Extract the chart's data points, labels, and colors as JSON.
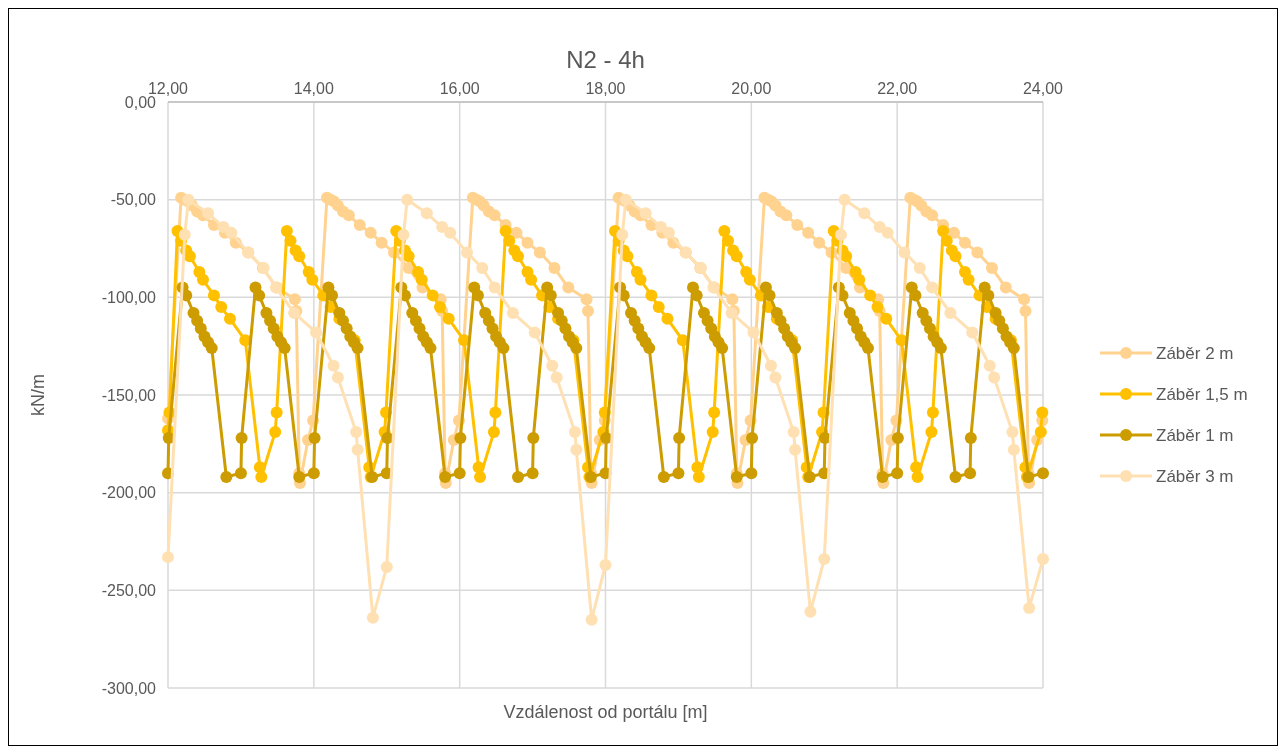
{
  "chart_data": {
    "type": "line",
    "title": "N2 - 4h",
    "xlabel": "Vzdálenost od portálu [m]",
    "ylabel": "kN/m",
    "xlim": [
      12,
      24
    ],
    "ylim": [
      -300,
      0
    ],
    "xticks": [
      {
        "value": 12,
        "label": "12,00"
      },
      {
        "value": 14,
        "label": "14,00"
      },
      {
        "value": 16,
        "label": "16,00"
      },
      {
        "value": 18,
        "label": "18,00"
      },
      {
        "value": 20,
        "label": "20,00"
      },
      {
        "value": 22,
        "label": "22,00"
      },
      {
        "value": 24,
        "label": "24,00"
      }
    ],
    "yticks": [
      {
        "value": 0,
        "label": "0,00"
      },
      {
        "value": -50,
        "label": "-50,00"
      },
      {
        "value": -100,
        "label": "-100,00"
      },
      {
        "value": -150,
        "label": "-150,00"
      },
      {
        "value": -200,
        "label": "-200,00"
      },
      {
        "value": -250,
        "label": "-250,00"
      },
      {
        "value": -300,
        "label": "-300,00"
      }
    ],
    "grid": true,
    "legend": "right",
    "marker": "circle",
    "line_style": "solid",
    "series": [
      {
        "name": "Záběr 2 m",
        "color": "#ffd38f",
        "x": [
          12,
          12.18,
          12.23,
          12.28,
          12.33,
          12.4,
          12.48,
          12.63,
          12.78,
          12.93,
          13.1,
          13.3,
          13.49,
          13.74,
          13.76,
          13.8,
          13.81,
          13.92,
          13.99,
          14.18,
          14.23,
          14.28,
          14.33,
          14.4,
          14.48,
          14.63,
          14.78,
          14.93,
          15.1,
          15.3,
          15.49,
          15.74,
          15.76,
          15.8,
          15.81,
          15.92,
          15.99,
          16.18,
          16.23,
          16.28,
          16.33,
          16.4,
          16.48,
          16.63,
          16.78,
          16.93,
          17.1,
          17.3,
          17.49,
          17.74,
          17.76,
          17.8,
          17.81,
          17.92,
          17.99,
          18.18,
          18.23,
          18.28,
          18.33,
          18.4,
          18.48,
          18.63,
          18.78,
          18.93,
          19.1,
          19.3,
          19.49,
          19.74,
          19.76,
          19.8,
          19.81,
          19.92,
          19.99,
          20.18,
          20.23,
          20.28,
          20.33,
          20.4,
          20.48,
          20.63,
          20.78,
          20.93,
          21.1,
          21.3,
          21.49,
          21.74,
          21.76,
          21.8,
          21.81,
          21.92,
          21.99,
          22.18,
          22.23,
          22.28,
          22.33,
          22.4,
          22.48,
          22.63,
          22.78,
          22.93,
          23.1,
          23.3,
          23.49,
          23.74,
          23.76,
          23.8,
          23.81,
          23.92,
          23.99
        ],
        "values": [
          -162,
          -49,
          -50,
          -51,
          -53,
          -56,
          -58,
          -63,
          -67,
          -72,
          -77,
          -85,
          -95,
          -101,
          -107,
          -190,
          -195,
          -173,
          -163,
          -49,
          -50,
          -51,
          -53,
          -56,
          -58,
          -63,
          -67,
          -72,
          -77,
          -85,
          -95,
          -101,
          -107,
          -190,
          -195,
          -173,
          -163,
          -49,
          -50,
          -51,
          -53,
          -56,
          -58,
          -63,
          -67,
          -72,
          -77,
          -85,
          -95,
          -101,
          -107,
          -190,
          -195,
          -173,
          -163,
          -49,
          -50,
          -51,
          -53,
          -56,
          -58,
          -63,
          -67,
          -72,
          -77,
          -85,
          -95,
          -101,
          -107,
          -190,
          -195,
          -173,
          -163,
          -49,
          -50,
          -51,
          -53,
          -56,
          -58,
          -63,
          -67,
          -72,
          -77,
          -85,
          -95,
          -101,
          -107,
          -190,
          -195,
          -173,
          -163,
          -49,
          -50,
          -51,
          -53,
          -56,
          -58,
          -63,
          -67,
          -72,
          -77,
          -85,
          -95,
          -101,
          -107,
          -190,
          -195,
          -173,
          -163
        ]
      },
      {
        "name": "Záběr 1,5 m",
        "color": "#ffc000",
        "x": [
          12,
          12.02,
          12.13,
          12.18,
          12.25,
          12.3,
          12.43,
          12.48,
          12.63,
          12.73,
          12.85,
          13.06,
          13.26,
          13.28,
          13.47,
          13.49,
          13.63,
          13.68,
          13.75,
          13.8,
          13.93,
          13.98,
          14.13,
          14.23,
          14.35,
          14.56,
          14.76,
          14.78,
          14.97,
          14.99,
          15.13,
          15.18,
          15.25,
          15.3,
          15.43,
          15.48,
          15.63,
          15.73,
          15.85,
          16.06,
          16.26,
          16.28,
          16.47,
          16.49,
          16.63,
          16.68,
          16.75,
          16.8,
          16.93,
          16.98,
          17.13,
          17.23,
          17.35,
          17.56,
          17.76,
          17.78,
          17.97,
          17.99,
          18.13,
          18.18,
          18.25,
          18.3,
          18.43,
          18.48,
          18.63,
          18.73,
          18.85,
          19.06,
          19.26,
          19.28,
          19.47,
          19.49,
          19.63,
          19.68,
          19.75,
          19.8,
          19.93,
          19.98,
          20.13,
          20.23,
          20.35,
          20.56,
          20.76,
          20.78,
          20.97,
          20.99,
          21.13,
          21.18,
          21.25,
          21.3,
          21.43,
          21.48,
          21.63,
          21.73,
          21.85,
          22.06,
          22.26,
          22.28,
          22.47,
          22.49,
          22.63,
          22.68,
          22.75,
          22.8,
          22.93,
          22.98,
          23.13,
          23.23,
          23.35,
          23.56,
          23.76,
          23.78,
          23.97,
          23.99
        ],
        "values": [
          -168,
          -159,
          -66,
          -71,
          -76,
          -79,
          -87,
          -91,
          -99,
          -105,
          -111,
          -122,
          -187,
          -192,
          -169,
          -159,
          -66,
          -71,
          -76,
          -79,
          -87,
          -91,
          -99,
          -105,
          -111,
          -122,
          -187,
          -192,
          -169,
          -159,
          -66,
          -71,
          -76,
          -79,
          -87,
          -91,
          -99,
          -105,
          -111,
          -122,
          -187,
          -192,
          -169,
          -159,
          -66,
          -71,
          -76,
          -79,
          -87,
          -91,
          -99,
          -105,
          -111,
          -122,
          -187,
          -192,
          -169,
          -159,
          -66,
          -71,
          -76,
          -79,
          -87,
          -91,
          -99,
          -105,
          -111,
          -122,
          -187,
          -192,
          -169,
          -159,
          -66,
          -71,
          -76,
          -79,
          -87,
          -91,
          -99,
          -105,
          -111,
          -122,
          -187,
          -192,
          -169,
          -159,
          -66,
          -71,
          -76,
          -79,
          -87,
          -91,
          -99,
          -105,
          -111,
          -122,
          -187,
          -192,
          -169,
          -159,
          -66,
          -71,
          -76,
          -79,
          -87,
          -91,
          -99,
          -105,
          -111,
          -122,
          -187,
          -192,
          -169,
          -159
        ]
      },
      {
        "name": "Záběr 1 m",
        "color": "#cc9c00",
        "x": [
          12,
          12.01,
          12.2,
          12.25,
          12.35,
          12.4,
          12.45,
          12.5,
          12.55,
          12.6,
          12.8,
          13,
          13.01,
          13.2,
          13.25,
          13.35,
          13.4,
          13.45,
          13.5,
          13.55,
          13.6,
          13.8,
          14,
          14.01,
          14.2,
          14.25,
          14.35,
          14.4,
          14.45,
          14.5,
          14.55,
          14.6,
          14.8,
          15,
          15.01,
          15.2,
          15.25,
          15.35,
          15.4,
          15.45,
          15.5,
          15.55,
          15.6,
          15.8,
          16,
          16.01,
          16.2,
          16.25,
          16.35,
          16.4,
          16.45,
          16.5,
          16.55,
          16.6,
          16.8,
          17,
          17.01,
          17.2,
          17.25,
          17.35,
          17.4,
          17.45,
          17.5,
          17.55,
          17.6,
          17.8,
          18,
          18.01,
          18.2,
          18.25,
          18.35,
          18.4,
          18.45,
          18.5,
          18.55,
          18.6,
          18.8,
          19,
          19.01,
          19.2,
          19.25,
          19.35,
          19.4,
          19.45,
          19.5,
          19.55,
          19.6,
          19.8,
          20,
          20.01,
          20.2,
          20.25,
          20.35,
          20.4,
          20.45,
          20.5,
          20.55,
          20.6,
          20.8,
          21,
          21.01,
          21.2,
          21.25,
          21.35,
          21.4,
          21.45,
          21.5,
          21.55,
          21.6,
          21.8,
          22,
          22.01,
          22.2,
          22.25,
          22.35,
          22.4,
          22.45,
          22.5,
          22.55,
          22.6,
          22.8,
          23,
          23.01,
          23.2,
          23.25,
          23.35,
          23.4,
          23.45,
          23.5,
          23.55,
          23.6,
          23.8,
          24
        ],
        "values": [
          -190,
          -172,
          -95,
          -99,
          -108,
          -112,
          -116,
          -120,
          -123,
          -126,
          -192,
          -190,
          -172,
          -95,
          -99,
          -108,
          -112,
          -116,
          -120,
          -123,
          -126,
          -192,
          -190,
          -172,
          -95,
          -99,
          -108,
          -112,
          -116,
          -120,
          -123,
          -126,
          -192,
          -190,
          -172,
          -95,
          -99,
          -108,
          -112,
          -116,
          -120,
          -123,
          -126,
          -192,
          -190,
          -172,
          -95,
          -99,
          -108,
          -112,
          -116,
          -120,
          -123,
          -126,
          -192,
          -190,
          -172,
          -95,
          -99,
          -108,
          -112,
          -116,
          -120,
          -123,
          -126,
          -192,
          -190,
          -172,
          -95,
          -99,
          -108,
          -112,
          -116,
          -120,
          -123,
          -126,
          -192,
          -190,
          -172,
          -95,
          -99,
          -108,
          -112,
          -116,
          -120,
          -123,
          -126,
          -192,
          -190,
          -172,
          -95,
          -99,
          -108,
          -112,
          -116,
          -120,
          -123,
          -126,
          -192,
          -190,
          -172,
          -95,
          -99,
          -108,
          -112,
          -116,
          -120,
          -123,
          -126,
          -192,
          -190,
          -172,
          -95,
          -99,
          -108,
          -112,
          -116,
          -120,
          -123,
          -126,
          -192,
          -190,
          -172,
          -95,
          -99,
          -108,
          -112,
          -116,
          -120,
          -123,
          -126,
          -192,
          -190
        ]
      },
      {
        "name": "Záběr 3 m",
        "color": "#ffe0b2",
        "x": [
          12,
          12.23,
          12.28,
          12.55,
          12.76,
          12.87,
          13.1,
          13.31,
          13.48,
          13.73,
          14.03,
          14.27,
          14.33,
          14.58,
          14.6,
          14.81,
          15,
          15.23,
          15.28,
          15.55,
          15.76,
          15.87,
          16.1,
          16.31,
          16.48,
          16.73,
          17.03,
          17.27,
          17.33,
          17.58,
          17.6,
          17.81,
          18,
          18.23,
          18.28,
          18.55,
          18.76,
          18.87,
          19.1,
          19.31,
          19.48,
          19.73,
          20.03,
          20.27,
          20.33,
          20.58,
          20.6,
          20.81,
          21,
          21.23,
          21.28,
          21.55,
          21.76,
          21.87,
          22.1,
          22.31,
          22.48,
          22.73,
          23.03,
          23.27,
          23.33,
          23.58,
          23.6,
          23.81,
          24
        ],
        "values": [
          -233,
          -68,
          -50,
          -57,
          -64,
          -67,
          -77,
          -85,
          -95,
          -108,
          -118,
          -135,
          -141,
          -169,
          -178,
          -264,
          -238,
          -68,
          -50,
          -57,
          -64,
          -67,
          -77,
          -85,
          -95,
          -108,
          -118,
          -135,
          -141,
          -169,
          -178,
          -265,
          -237,
          -68,
          -50,
          -57,
          -64,
          -67,
          -77,
          -85,
          -95,
          -108,
          -118,
          -135,
          -141,
          -169,
          -178,
          -261,
          -234,
          -68,
          -50,
          -57,
          -64,
          -67,
          -77,
          -85,
          -95,
          -108,
          -118,
          -135,
          -141,
          -169,
          -178,
          -259,
          -234
        ]
      }
    ]
  }
}
